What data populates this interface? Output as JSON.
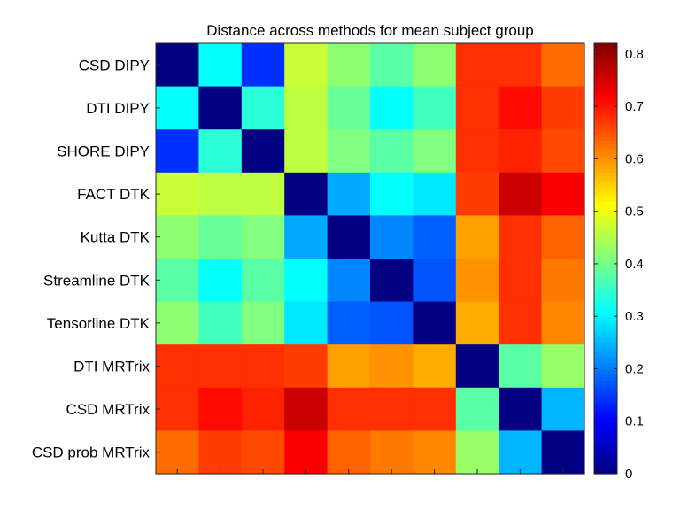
{
  "chart_data": {
    "type": "heatmap",
    "title": "Distance across methods for mean subject group",
    "xlabel": "",
    "ylabel": "",
    "row_labels": [
      "CSD DIPY",
      "DTI DIPY",
      "SHORE DIPY",
      "FACT DTK",
      "Kutta DTK",
      "Streamline DTK",
      "Tensorline DTK",
      "DTI MRTrix",
      "CSD MRTrix",
      "CSD prob MRTrix"
    ],
    "column_labels": [],
    "values": [
      [
        0.0,
        0.31,
        0.14,
        0.47,
        0.42,
        0.38,
        0.42,
        0.68,
        0.68,
        0.63
      ],
      [
        0.31,
        0.0,
        0.34,
        0.46,
        0.39,
        0.31,
        0.36,
        0.68,
        0.71,
        0.67
      ],
      [
        0.14,
        0.34,
        0.0,
        0.46,
        0.41,
        0.38,
        0.41,
        0.68,
        0.69,
        0.66
      ],
      [
        0.47,
        0.46,
        0.46,
        0.0,
        0.24,
        0.31,
        0.29,
        0.67,
        0.76,
        0.72
      ],
      [
        0.42,
        0.39,
        0.41,
        0.24,
        0.0,
        0.21,
        0.18,
        0.59,
        0.68,
        0.64
      ],
      [
        0.38,
        0.31,
        0.38,
        0.31,
        0.21,
        0.0,
        0.17,
        0.6,
        0.68,
        0.62
      ],
      [
        0.42,
        0.36,
        0.41,
        0.29,
        0.18,
        0.17,
        0.0,
        0.58,
        0.68,
        0.61
      ],
      [
        0.68,
        0.68,
        0.68,
        0.67,
        0.59,
        0.6,
        0.58,
        0.0,
        0.38,
        0.43
      ],
      [
        0.68,
        0.71,
        0.69,
        0.76,
        0.68,
        0.68,
        0.68,
        0.38,
        0.0,
        0.25
      ],
      [
        0.63,
        0.67,
        0.66,
        0.72,
        0.64,
        0.62,
        0.61,
        0.43,
        0.25,
        0.0
      ]
    ],
    "colormap": "jet",
    "clim": [
      0,
      0.82
    ],
    "colorbar": {
      "ticks": [
        0,
        0.1,
        0.2,
        0.3,
        0.4,
        0.5,
        0.6,
        0.7,
        0.8
      ],
      "tick_labels": [
        "0",
        "0.1",
        "0.2",
        "0.3",
        "0.4",
        "0.5",
        "0.6",
        "0.7",
        "0.8"
      ],
      "location": "right"
    },
    "grid": false,
    "legend": "none"
  }
}
